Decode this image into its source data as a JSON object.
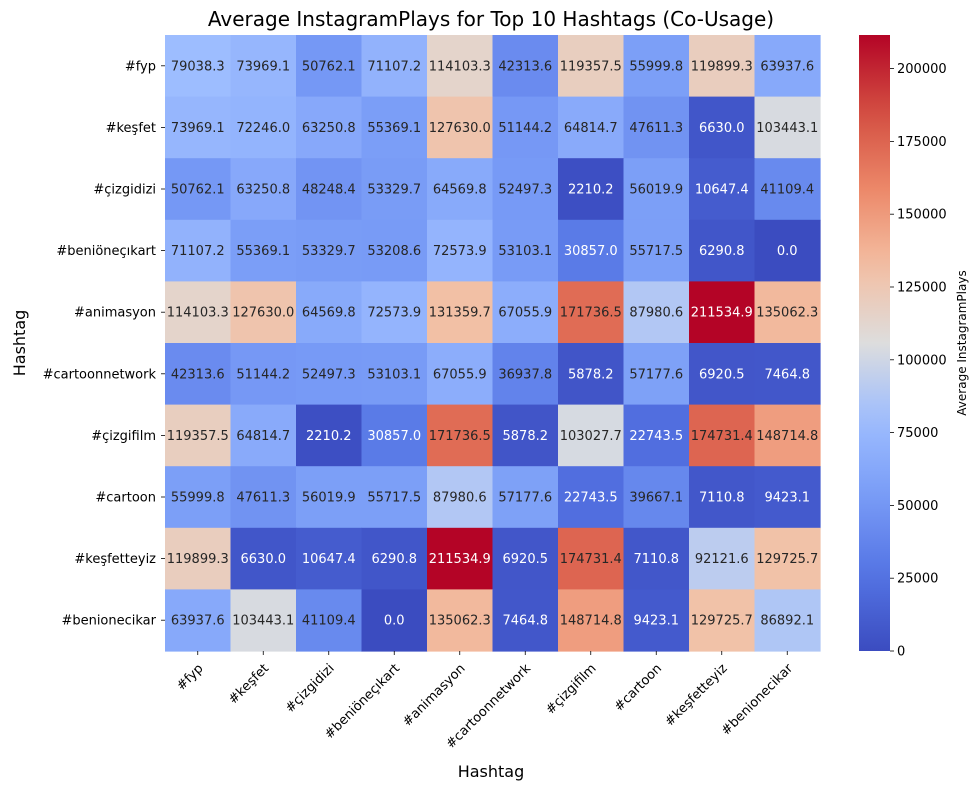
{
  "chart_data": {
    "type": "heatmap",
    "title": "Average InstagramPlays for Top 10 Hashtags (Co-Usage)",
    "xlabel": "Hashtag",
    "ylabel": "Hashtag",
    "rows": [
      "#fyp",
      "#keşfet",
      "#çizgidizi",
      "#beniöneçıkart",
      "#animasyon",
      "#cartoonnetwork",
      "#çizgifilm",
      "#cartoon",
      "#keşfetteyiz",
      "#benionecikar"
    ],
    "columns": [
      "#fyp",
      "#keşfet",
      "#çizgidizi",
      "#beniöneçıkart",
      "#animasyon",
      "#cartoonnetwork",
      "#çizgifilm",
      "#cartoon",
      "#keşfetteyiz",
      "#benionecikar"
    ],
    "values": [
      [
        79038.3,
        73969.1,
        50762.1,
        71107.2,
        114103.3,
        42313.6,
        119357.5,
        55999.8,
        119899.3,
        63937.6
      ],
      [
        73969.1,
        72246.0,
        63250.8,
        55369.1,
        127630.0,
        51144.2,
        64814.7,
        47611.3,
        6630.0,
        103443.1
      ],
      [
        50762.1,
        63250.8,
        48248.4,
        53329.7,
        64569.8,
        52497.3,
        2210.2,
        56019.9,
        10647.4,
        41109.4
      ],
      [
        71107.2,
        55369.1,
        53329.7,
        53208.6,
        72573.9,
        53103.1,
        30857.0,
        55717.5,
        6290.8,
        0.0
      ],
      [
        114103.3,
        127630.0,
        64569.8,
        72573.9,
        131359.7,
        67055.9,
        171736.5,
        87980.6,
        211534.9,
        135062.3
      ],
      [
        42313.6,
        51144.2,
        52497.3,
        53103.1,
        67055.9,
        36937.8,
        5878.2,
        57177.6,
        6920.5,
        7464.8
      ],
      [
        119357.5,
        64814.7,
        2210.2,
        30857.0,
        171736.5,
        5878.2,
        103027.7,
        22743.5,
        174731.4,
        148714.8
      ],
      [
        55999.8,
        47611.3,
        56019.9,
        55717.5,
        87980.6,
        57177.6,
        22743.5,
        39667.1,
        7110.8,
        9423.1
      ],
      [
        119899.3,
        6630.0,
        10647.4,
        6290.8,
        211534.9,
        6920.5,
        174731.4,
        7110.8,
        92121.6,
        129725.7
      ],
      [
        63937.6,
        103443.1,
        41109.4,
        0.0,
        135062.3,
        7464.8,
        148714.8,
        9423.1,
        129725.7,
        86892.1
      ]
    ],
    "colorbar": {
      "label": "Average InstagramPlays",
      "min": 0,
      "max": 211534.9,
      "ticks": [
        0,
        25000,
        50000,
        75000,
        100000,
        125000,
        150000,
        175000,
        200000
      ],
      "colormap": "coolwarm"
    },
    "value_format": "1 decimal"
  }
}
